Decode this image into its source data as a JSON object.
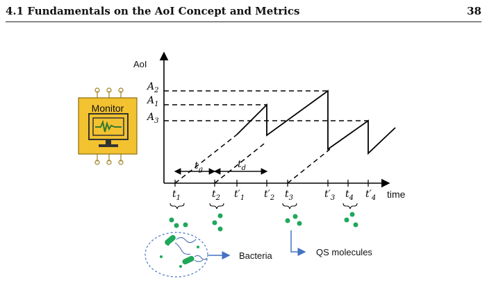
{
  "header": {
    "section_title": "4.1 Fundamentals on the AoI Concept and Metrics",
    "page_number": "38"
  },
  "figure": {
    "y_axis_label": "AoI",
    "x_axis_label": "time",
    "monitor_label": "Monitor",
    "levels": {
      "a2": "A",
      "a2_sub": "2",
      "a1": "A",
      "a1_sub": "1",
      "a3": "A",
      "a3_sub": "3"
    },
    "ticks": [
      {
        "base": "t",
        "sub": "1",
        "prime": ""
      },
      {
        "base": "t",
        "sub": "2",
        "prime": ""
      },
      {
        "base": "t",
        "sub": "1",
        "prime": "′"
      },
      {
        "base": "t",
        "sub": "2",
        "prime": "′"
      },
      {
        "base": "t",
        "sub": "3",
        "prime": ""
      },
      {
        "base": "t",
        "sub": "3",
        "prime": "′"
      },
      {
        "base": "t",
        "sub": "4",
        "prime": ""
      },
      {
        "base": "t",
        "sub": "4",
        "prime": "′"
      }
    ],
    "intervals": {
      "tg": "t",
      "tg_sub": "g",
      "td": "t",
      "td_sub": "d"
    },
    "bacteria_label": "Bacteria",
    "qs_label": "QS molecules"
  },
  "colors": {
    "monitor_fill": "#f2c230",
    "molecule": "#1fa85a",
    "arrow": "#4472c4",
    "bacteria_circle": "#4472c4"
  }
}
